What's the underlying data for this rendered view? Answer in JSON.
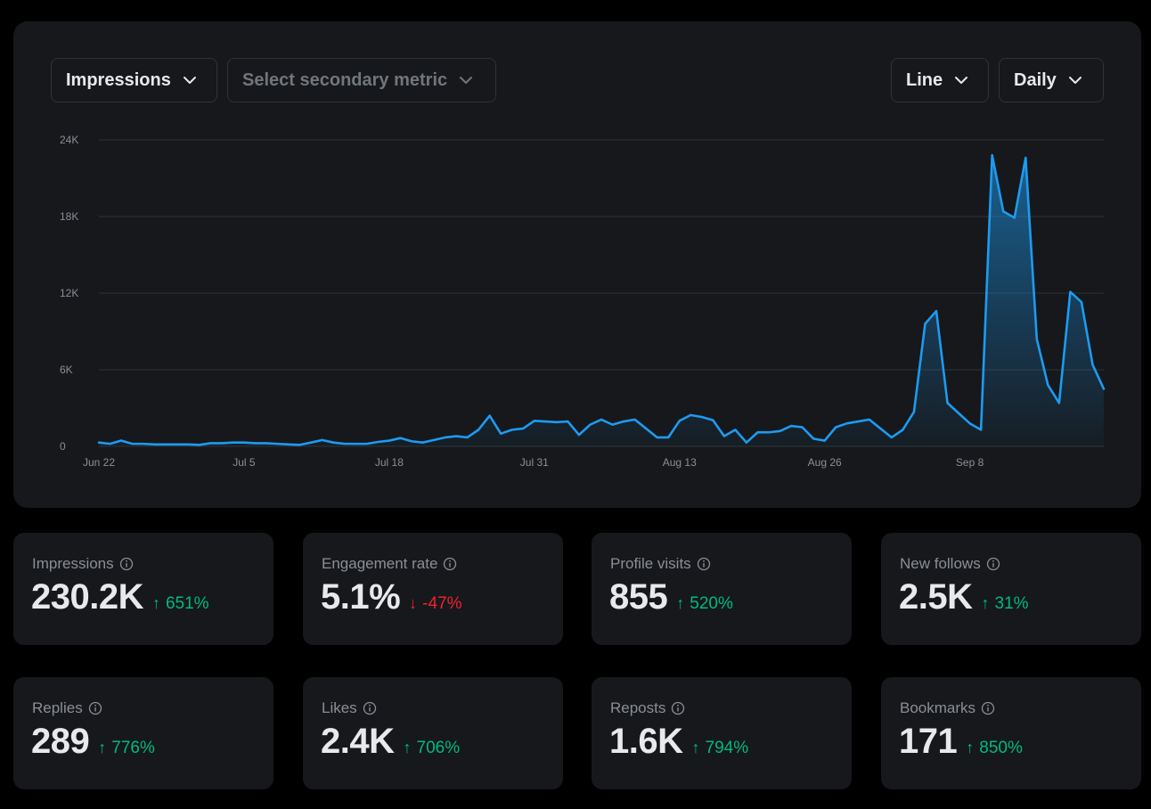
{
  "toolbar": {
    "primary_metric": "Impressions",
    "secondary_metric_placeholder": "Select secondary metric",
    "chart_type": "Line",
    "period": "Daily"
  },
  "colors": {
    "line": "#1d9bf0",
    "positive": "#00ba7c",
    "negative": "#f4212e",
    "card": "#16181c"
  },
  "chart_data": {
    "type": "area",
    "series": [
      {
        "values": [
          300,
          200,
          450,
          200,
          200,
          150,
          150,
          150,
          150,
          120,
          250,
          250,
          300,
          300,
          250,
          250,
          200,
          150,
          120,
          300,
          500,
          300,
          200,
          200,
          200,
          350,
          450,
          650,
          400,
          300,
          500,
          700,
          800,
          700,
          1300,
          2400,
          1000,
          1300,
          1400,
          2000,
          1950,
          1900,
          1950,
          900,
          1700,
          2100,
          1700,
          1950,
          2100,
          1400,
          700,
          700,
          2000,
          2450,
          2300,
          2050,
          800,
          1300,
          300,
          1100,
          1100,
          1200,
          1600,
          1500,
          600,
          450,
          1500,
          1800,
          1950,
          2100,
          1400,
          700,
          1300,
          2700,
          9600,
          10600,
          3400,
          2600,
          1800,
          1300,
          22800,
          18400,
          17900,
          22600,
          8400,
          4800,
          3400,
          12100,
          11300,
          6400,
          4500
        ]
      }
    ],
    "x_ticks": [
      "Jun 22",
      "Jul 5",
      "Jul 18",
      "Jul 31",
      "Aug 13",
      "Aug 26",
      "Sep 8"
    ],
    "y_ticks": [
      "24K",
      "18K",
      "12K",
      "6K",
      "0"
    ],
    "ylim": [
      0,
      24000
    ],
    "grid": true
  },
  "stats": [
    {
      "label": "Impressions",
      "value": "230.2K",
      "change": "651%",
      "dir": "up"
    },
    {
      "label": "Engagement rate",
      "value": "5.1%",
      "change": "-47%",
      "dir": "down"
    },
    {
      "label": "Profile visits",
      "value": "855",
      "change": "520%",
      "dir": "up"
    },
    {
      "label": "New follows",
      "value": "2.5K",
      "change": "31%",
      "dir": "up"
    },
    {
      "label": "Replies",
      "value": "289",
      "change": "776%",
      "dir": "up"
    },
    {
      "label": "Likes",
      "value": "2.4K",
      "change": "706%",
      "dir": "up"
    },
    {
      "label": "Reposts",
      "value": "1.6K",
      "change": "794%",
      "dir": "up"
    },
    {
      "label": "Bookmarks",
      "value": "171",
      "change": "850%",
      "dir": "up"
    }
  ]
}
